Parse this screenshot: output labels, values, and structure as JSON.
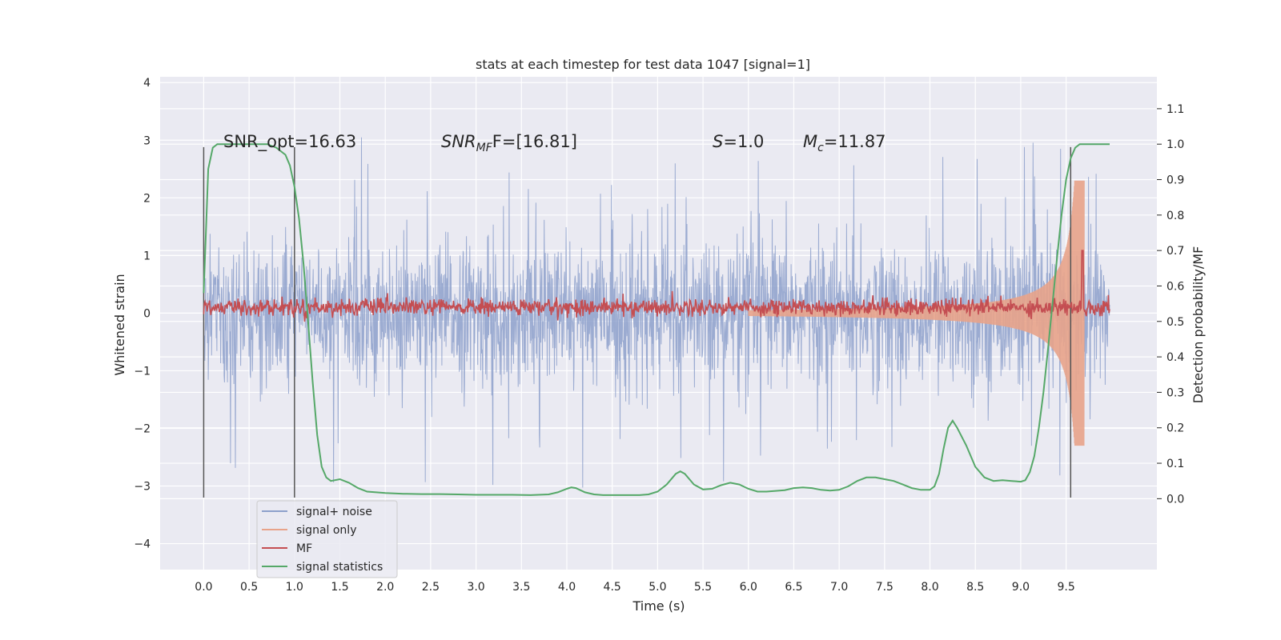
{
  "chart_data": {
    "type": "line",
    "title": "stats at each timestep for test data 1047 [signal=1]",
    "xlabel": "Time (s)",
    "ylabel": "Whitened strain",
    "y2label": "Detection probability/MF",
    "xlim": [
      -0.48,
      10.5
    ],
    "ylim": [
      -4.45,
      4.1
    ],
    "y2lim": [
      -0.2,
      1.19
    ],
    "xticks": [
      0.0,
      0.5,
      1.0,
      1.5,
      2.0,
      2.5,
      3.0,
      3.5,
      4.0,
      4.5,
      5.0,
      5.5,
      6.0,
      6.5,
      7.0,
      7.5,
      8.0,
      8.5,
      9.0,
      9.5
    ],
    "xtick_labels": [
      "0.0",
      "0.5",
      "1.0",
      "1.5",
      "2.0",
      "2.5",
      "3.0",
      "3.5",
      "4.0",
      "4.5",
      "5.0",
      "5.5",
      "6.0",
      "6.5",
      "7.0",
      "7.5",
      "8.0",
      "8.5",
      "9.0",
      "9.5"
    ],
    "yticks": [
      -4,
      -3,
      -2,
      -1,
      0,
      1,
      2,
      3,
      4
    ],
    "ytick_labels": [
      "−4",
      "−3",
      "−2",
      "−1",
      "0",
      "1",
      "2",
      "3",
      "4"
    ],
    "y2ticks": [
      0.0,
      0.1,
      0.2,
      0.3,
      0.4,
      0.5,
      0.6,
      0.7,
      0.8,
      0.9,
      1.0,
      1.1
    ],
    "y2tick_labels": [
      "0.0",
      "0.1",
      "0.2",
      "0.3",
      "0.4",
      "0.5",
      "0.6",
      "0.7",
      "0.8",
      "0.9",
      "1.0",
      "1.1"
    ],
    "grid": true,
    "legend_position": "lower-left",
    "annotations": {
      "snr_opt": "SNR_opt=16.63",
      "snr_mf_prefix": "SNR",
      "snr_mf_sub": "MF",
      "snr_mf_suffix": "F=[16.81]",
      "s_name": "S",
      "s_value": "=1.0",
      "mc_name": "M",
      "mc_sub": "c",
      "mc_value": "=11.87"
    },
    "vlines": [
      0.0,
      1.0,
      9.55
    ],
    "series": [
      {
        "name": "signal+ noise",
        "color": "#8da0cb",
        "axis": "left",
        "envelope": {
          "x_range": [
            0.0,
            9.98
          ],
          "typical_amplitude": 1.55,
          "peak_amplitude": 3.5,
          "max_value": 3.7,
          "min_value": -4.05
        }
      },
      {
        "name": "signal only",
        "color": "#e8a38a",
        "axis": "left",
        "envelope": {
          "x_range": [
            6.0,
            9.7
          ],
          "start_amplitude": 0.05,
          "peak_amplitude": 2.3,
          "peak_time": 9.67
        }
      },
      {
        "name": "MF",
        "color": "#c44e52",
        "axis": "right",
        "baseline": 0.54,
        "noise_level": 0.012,
        "peak": {
          "x": 9.68,
          "y": 0.7
        }
      },
      {
        "name": "signal statistics",
        "color": "#55a868",
        "axis": "right",
        "x": [
          0.0,
          0.05,
          0.1,
          0.15,
          0.2,
          0.3,
          0.4,
          0.5,
          0.6,
          0.7,
          0.8,
          0.9,
          0.95,
          1.0,
          1.05,
          1.1,
          1.15,
          1.2,
          1.25,
          1.3,
          1.35,
          1.4,
          1.5,
          1.6,
          1.7,
          1.8,
          1.9,
          2.0,
          2.2,
          2.4,
          2.6,
          2.8,
          3.0,
          3.2,
          3.4,
          3.6,
          3.8,
          3.9,
          4.0,
          4.05,
          4.1,
          4.2,
          4.3,
          4.4,
          4.6,
          4.8,
          4.9,
          5.0,
          5.1,
          5.2,
          5.25,
          5.3,
          5.35,
          5.4,
          5.5,
          5.6,
          5.7,
          5.8,
          5.9,
          6.0,
          6.1,
          6.2,
          6.4,
          6.5,
          6.6,
          6.7,
          6.8,
          6.9,
          7.0,
          7.1,
          7.2,
          7.3,
          7.4,
          7.5,
          7.6,
          7.7,
          7.8,
          7.9,
          8.0,
          8.05,
          8.1,
          8.15,
          8.2,
          8.25,
          8.3,
          8.4,
          8.5,
          8.6,
          8.7,
          8.8,
          8.9,
          9.0,
          9.05,
          9.1,
          9.15,
          9.2,
          9.25,
          9.3,
          9.35,
          9.4,
          9.45,
          9.5,
          9.55,
          9.6,
          9.65,
          9.7,
          9.75,
          9.8,
          9.9,
          9.98
        ],
        "y": [
          0.58,
          0.93,
          0.99,
          1.0,
          1.0,
          1.0,
          1.0,
          1.0,
          1.0,
          1.0,
          0.99,
          0.97,
          0.94,
          0.88,
          0.79,
          0.66,
          0.5,
          0.33,
          0.18,
          0.09,
          0.06,
          0.05,
          0.055,
          0.045,
          0.03,
          0.02,
          0.018,
          0.016,
          0.014,
          0.013,
          0.013,
          0.012,
          0.011,
          0.011,
          0.011,
          0.01,
          0.012,
          0.018,
          0.028,
          0.032,
          0.03,
          0.018,
          0.012,
          0.01,
          0.01,
          0.01,
          0.012,
          0.02,
          0.04,
          0.07,
          0.077,
          0.07,
          0.055,
          0.04,
          0.026,
          0.028,
          0.038,
          0.045,
          0.04,
          0.028,
          0.02,
          0.02,
          0.024,
          0.03,
          0.032,
          0.03,
          0.025,
          0.023,
          0.025,
          0.035,
          0.05,
          0.06,
          0.06,
          0.055,
          0.05,
          0.04,
          0.03,
          0.025,
          0.025,
          0.035,
          0.07,
          0.14,
          0.2,
          0.22,
          0.2,
          0.15,
          0.09,
          0.06,
          0.05,
          0.052,
          0.05,
          0.048,
          0.052,
          0.075,
          0.12,
          0.2,
          0.3,
          0.42,
          0.55,
          0.68,
          0.8,
          0.9,
          0.96,
          0.99,
          1.0,
          1.0,
          1.0,
          1.0,
          1.0,
          1.0
        ]
      }
    ]
  }
}
